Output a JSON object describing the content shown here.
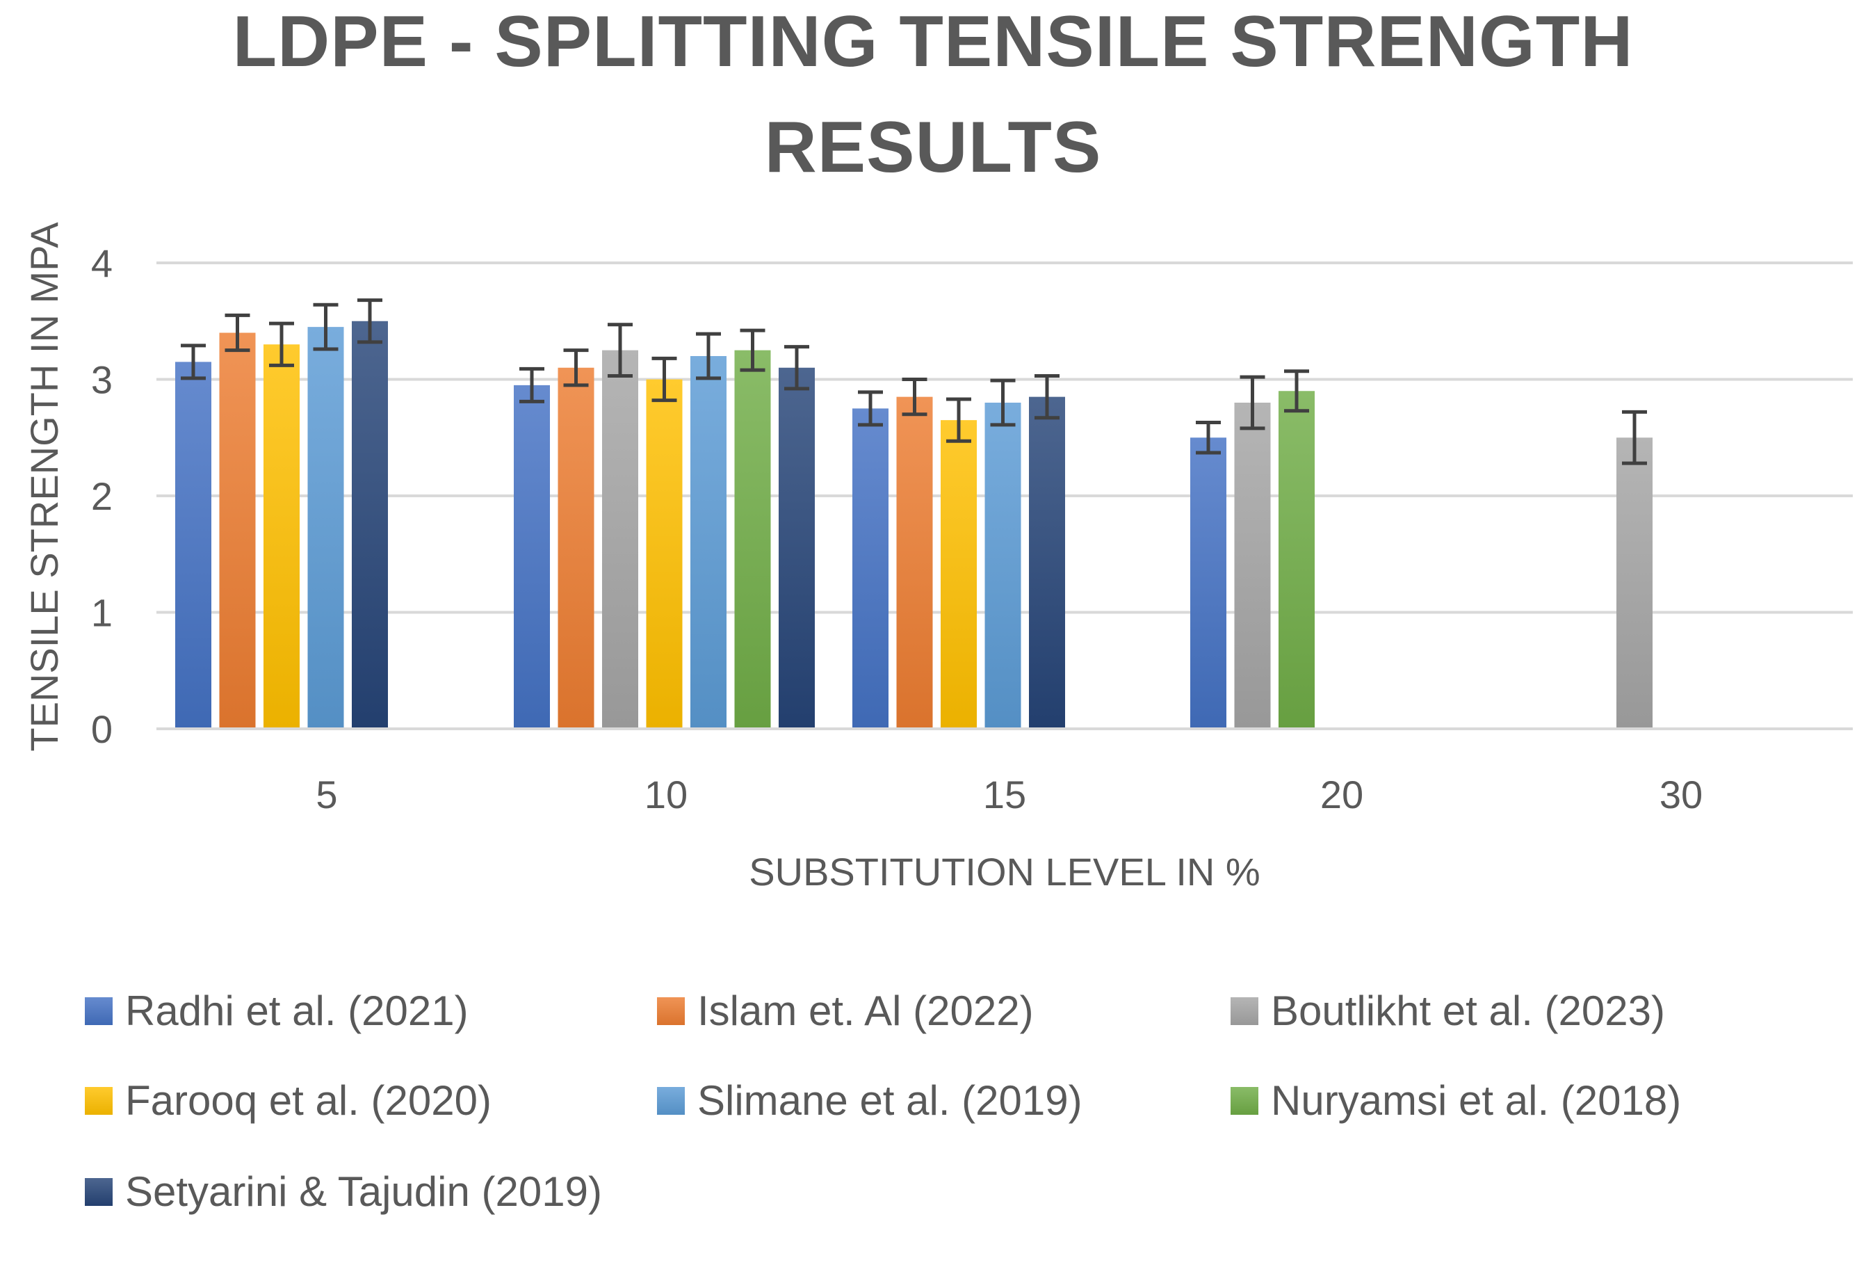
{
  "chart_data": {
    "type": "bar",
    "title_lines": [
      "LDPE - SPLITTING TENSILE STRENGTH",
      "RESULTS"
    ],
    "xlabel": "SUBSTITUTION LEVEL IN %",
    "ylabel": "TENSILE STRENGTH IN MPA",
    "ylim": [
      0,
      4
    ],
    "yticks": [
      "0",
      "1",
      "2",
      "3",
      "4"
    ],
    "grid": true,
    "legend_position": "bottom",
    "categories": [
      "5",
      "10",
      "15",
      "20",
      "30"
    ],
    "series": [
      {
        "name": "Radhi et al. (2021)",
        "color": "#4472c4",
        "values": [
          3.15,
          2.95,
          2.75,
          2.5,
          null
        ],
        "errors": [
          0.14,
          0.14,
          0.14,
          0.13,
          null
        ]
      },
      {
        "name": "Islam et. Al (2022)",
        "color": "#ed7d31",
        "values": [
          3.4,
          3.1,
          2.85,
          null,
          null
        ],
        "errors": [
          0.15,
          0.15,
          0.15,
          null,
          null
        ]
      },
      {
        "name": " Boutlikht et al. (2023)",
        "color": "#a5a5a5",
        "values": [
          null,
          3.25,
          null,
          2.8,
          2.5
        ],
        "errors": [
          null,
          0.22,
          null,
          0.22,
          0.22
        ]
      },
      {
        "name": "Farooq et al. (2020)",
        "color": "#ffc000",
        "values": [
          3.3,
          3.0,
          2.65,
          null,
          null
        ],
        "errors": [
          0.18,
          0.18,
          0.18,
          null,
          null
        ]
      },
      {
        "name": "Slimane et al. (2019)",
        "color": "#5b9bd5",
        "values": [
          3.45,
          3.2,
          2.8,
          null,
          null
        ],
        "errors": [
          0.19,
          0.19,
          0.19,
          null,
          null
        ]
      },
      {
        "name": "Nuryamsi et al. (2018)",
        "color": "#70ad47",
        "values": [
          null,
          3.25,
          null,
          2.9,
          null
        ],
        "errors": [
          null,
          0.17,
          null,
          0.17,
          null
        ]
      },
      {
        "name": "Setyarini & Tajudin (2019)",
        "color": "#264478",
        "values": [
          3.5,
          3.1,
          2.85,
          null,
          null
        ],
        "errors": [
          0.18,
          0.18,
          0.18,
          null,
          null
        ]
      }
    ]
  }
}
